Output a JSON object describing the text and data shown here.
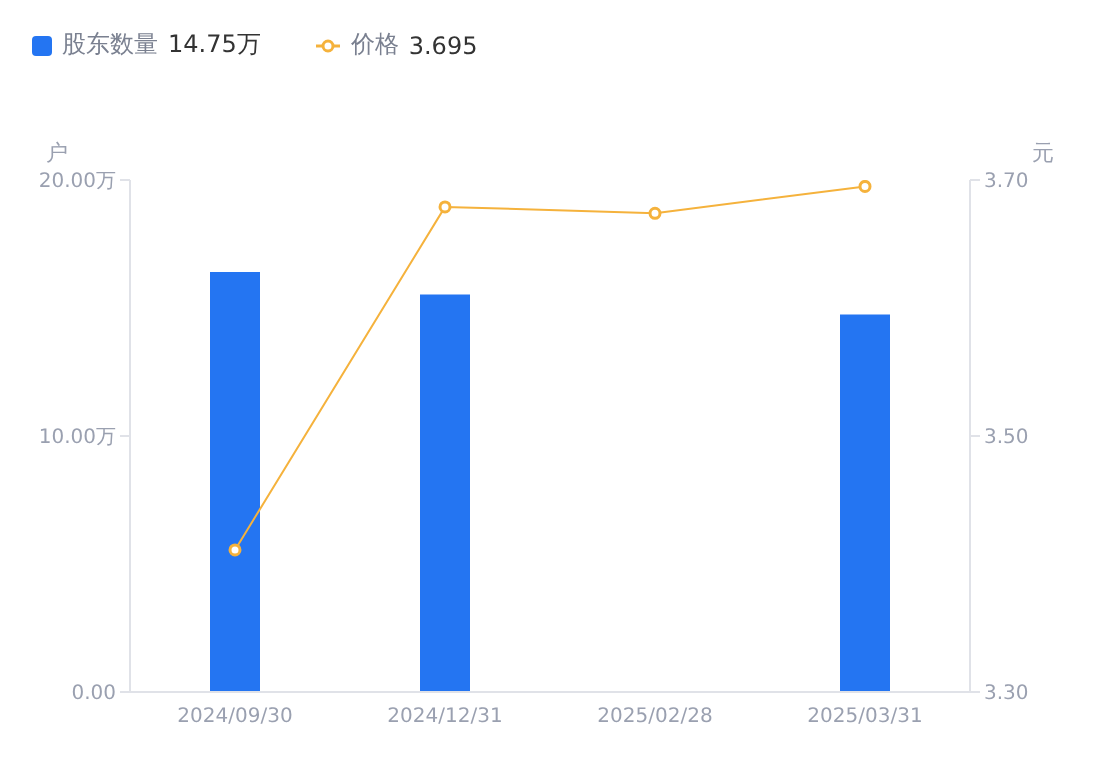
{
  "chart_data": {
    "type": "bar",
    "categories": [
      "2024/09/30",
      "2024/12/31",
      "2025/02/28",
      "2025/03/31"
    ],
    "series": [
      {
        "name": "股东数量",
        "color": "#2475f2",
        "values": [
          16.41,
          15.53,
          null,
          14.75
        ]
      },
      {
        "name": "价格",
        "type": "line",
        "axis": "y2",
        "color": "#f5b23c",
        "values": [
          3.411,
          3.679,
          3.674,
          3.695
        ],
        "marker": "circle"
      }
    ],
    "annotations": [
      "14.75万",
      "3.695"
    ],
    "ylabel": "户",
    "y2label": "元",
    "ylim": [
      0,
      20
    ],
    "yticks": [
      {
        "value": 0,
        "label": "0.00"
      },
      {
        "value": 10,
        "label": "10.00万"
      },
      {
        "value": 20,
        "label": "20.00万"
      }
    ],
    "y2lim": [
      3.3,
      3.7
    ],
    "y2ticks": [
      {
        "value": 3.3,
        "label": "3.30"
      },
      {
        "value": 3.5,
        "label": "3.50"
      },
      {
        "value": 3.7,
        "label": "3.70"
      }
    ],
    "grid": false,
    "legend": "top left"
  }
}
